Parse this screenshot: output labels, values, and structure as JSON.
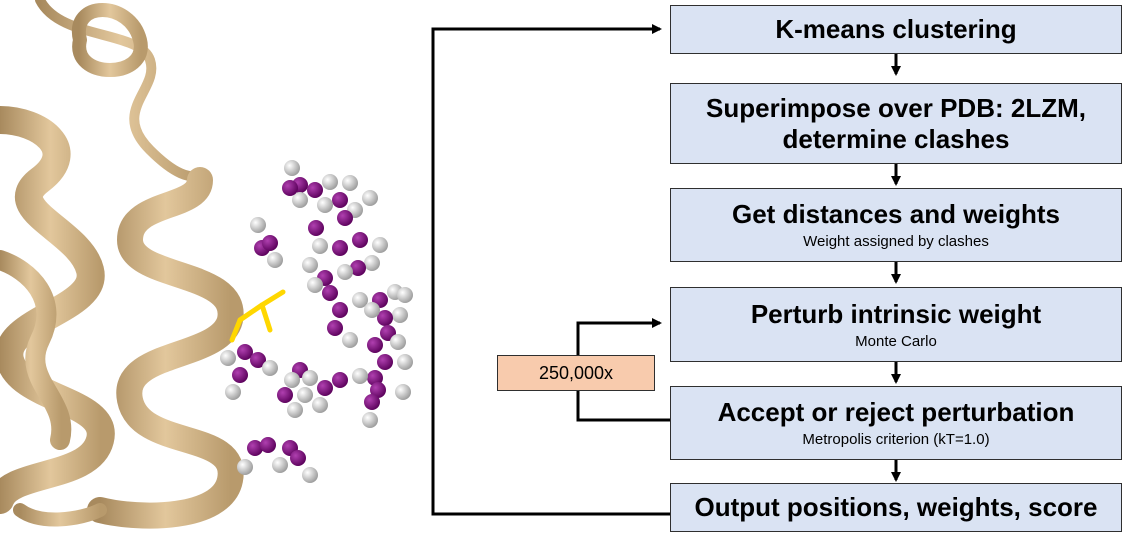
{
  "steps": [
    {
      "title": "K-means clustering",
      "subtitle": ""
    },
    {
      "title_lines": [
        "Superimpose over PDB: 2LZM,",
        "determine clashes"
      ],
      "subtitle": ""
    },
    {
      "title": "Get distances and weights",
      "subtitle": "Weight assigned by clashes"
    },
    {
      "title": "Perturb intrinsic weight",
      "subtitle": "Monte Carlo"
    },
    {
      "title": "Accept or reject perturbation",
      "subtitle": "Metropolis criterion (kT=1.0)"
    },
    {
      "title": "Output positions, weights, score",
      "subtitle": ""
    }
  ],
  "loop_label": "250,000x",
  "colors": {
    "box_fill": "#dae3f3",
    "loop_fill": "#f8cbad",
    "ribbon": "#d2b48c",
    "spin_label_purple": "#800080",
    "spin_label_white": "#e6e6e6",
    "side_chain": "#ffd700"
  }
}
